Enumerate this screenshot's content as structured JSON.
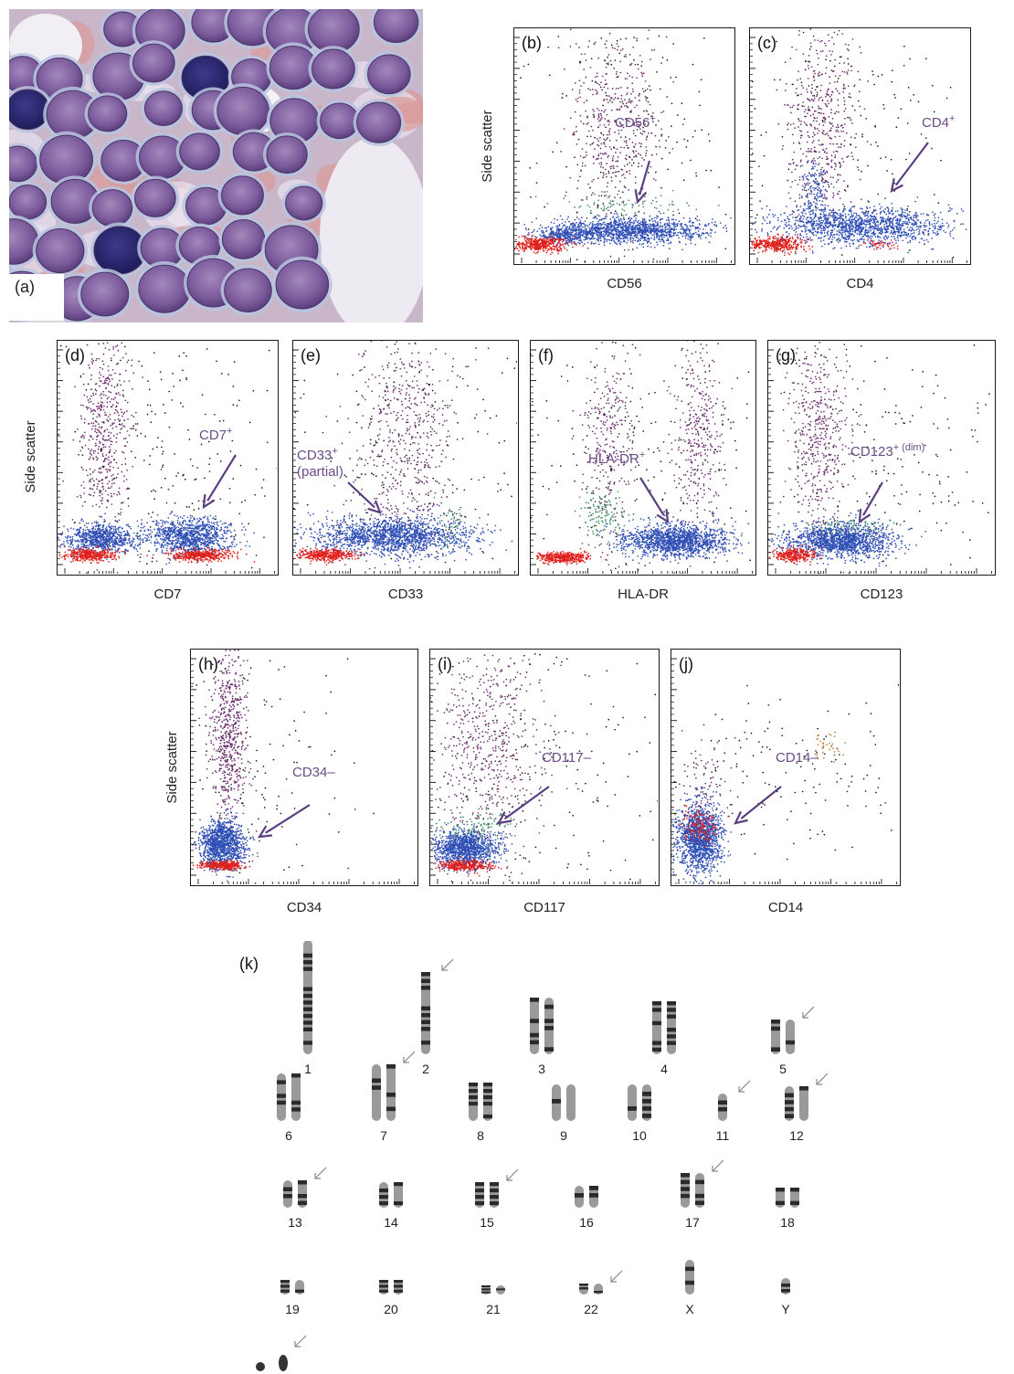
{
  "panel_a": {
    "label": "(a)"
  },
  "y_axis_label": "Side scatter",
  "plots": [
    {
      "id": "b",
      "label": "(b)",
      "xlabel": "CD56",
      "ann": "CD56",
      "sup": "+",
      "ann2": ""
    },
    {
      "id": "c",
      "label": "(c)",
      "xlabel": "CD4",
      "ann": "CD4",
      "sup": "+",
      "ann2": ""
    },
    {
      "id": "d",
      "label": "(d)",
      "xlabel": "CD7",
      "ann": "CD7",
      "sup": "+",
      "ann2": ""
    },
    {
      "id": "e",
      "label": "(e)",
      "xlabel": "CD33",
      "ann": "CD33",
      "sup": "+",
      "ann2": "(partial)"
    },
    {
      "id": "f",
      "label": "(f)",
      "xlabel": "HLA-DR",
      "ann": "HLA-DR",
      "sup": "+",
      "ann2": ""
    },
    {
      "id": "g",
      "label": "(g)",
      "xlabel": "CD123",
      "ann": "CD123",
      "sup": "+ (dim)",
      "ann2": ""
    },
    {
      "id": "h",
      "label": "(h)",
      "xlabel": "CD34",
      "ann": "CD34–",
      "sup": "",
      "ann2": ""
    },
    {
      "id": "i",
      "label": "(i)",
      "xlabel": "CD117",
      "ann": "CD117–",
      "sup": "",
      "ann2": ""
    },
    {
      "id": "j",
      "label": "(j)",
      "xlabel": "CD14",
      "ann": "CD14–",
      "sup": "",
      "ann2": ""
    }
  ],
  "karyotype": {
    "label": "(k)",
    "chromosomes": [
      "1",
      "2",
      "3",
      "4",
      "5",
      "6",
      "7",
      "8",
      "9",
      "10",
      "11",
      "12",
      "13",
      "14",
      "15",
      "16",
      "17",
      "18",
      "19",
      "20",
      "21",
      "22",
      "X",
      "Y"
    ]
  },
  "colors": {
    "annotation": "#6a4c86",
    "blue": "#2f4fb5",
    "red": "#e0201c",
    "purple": "#6b2a6e"
  }
}
